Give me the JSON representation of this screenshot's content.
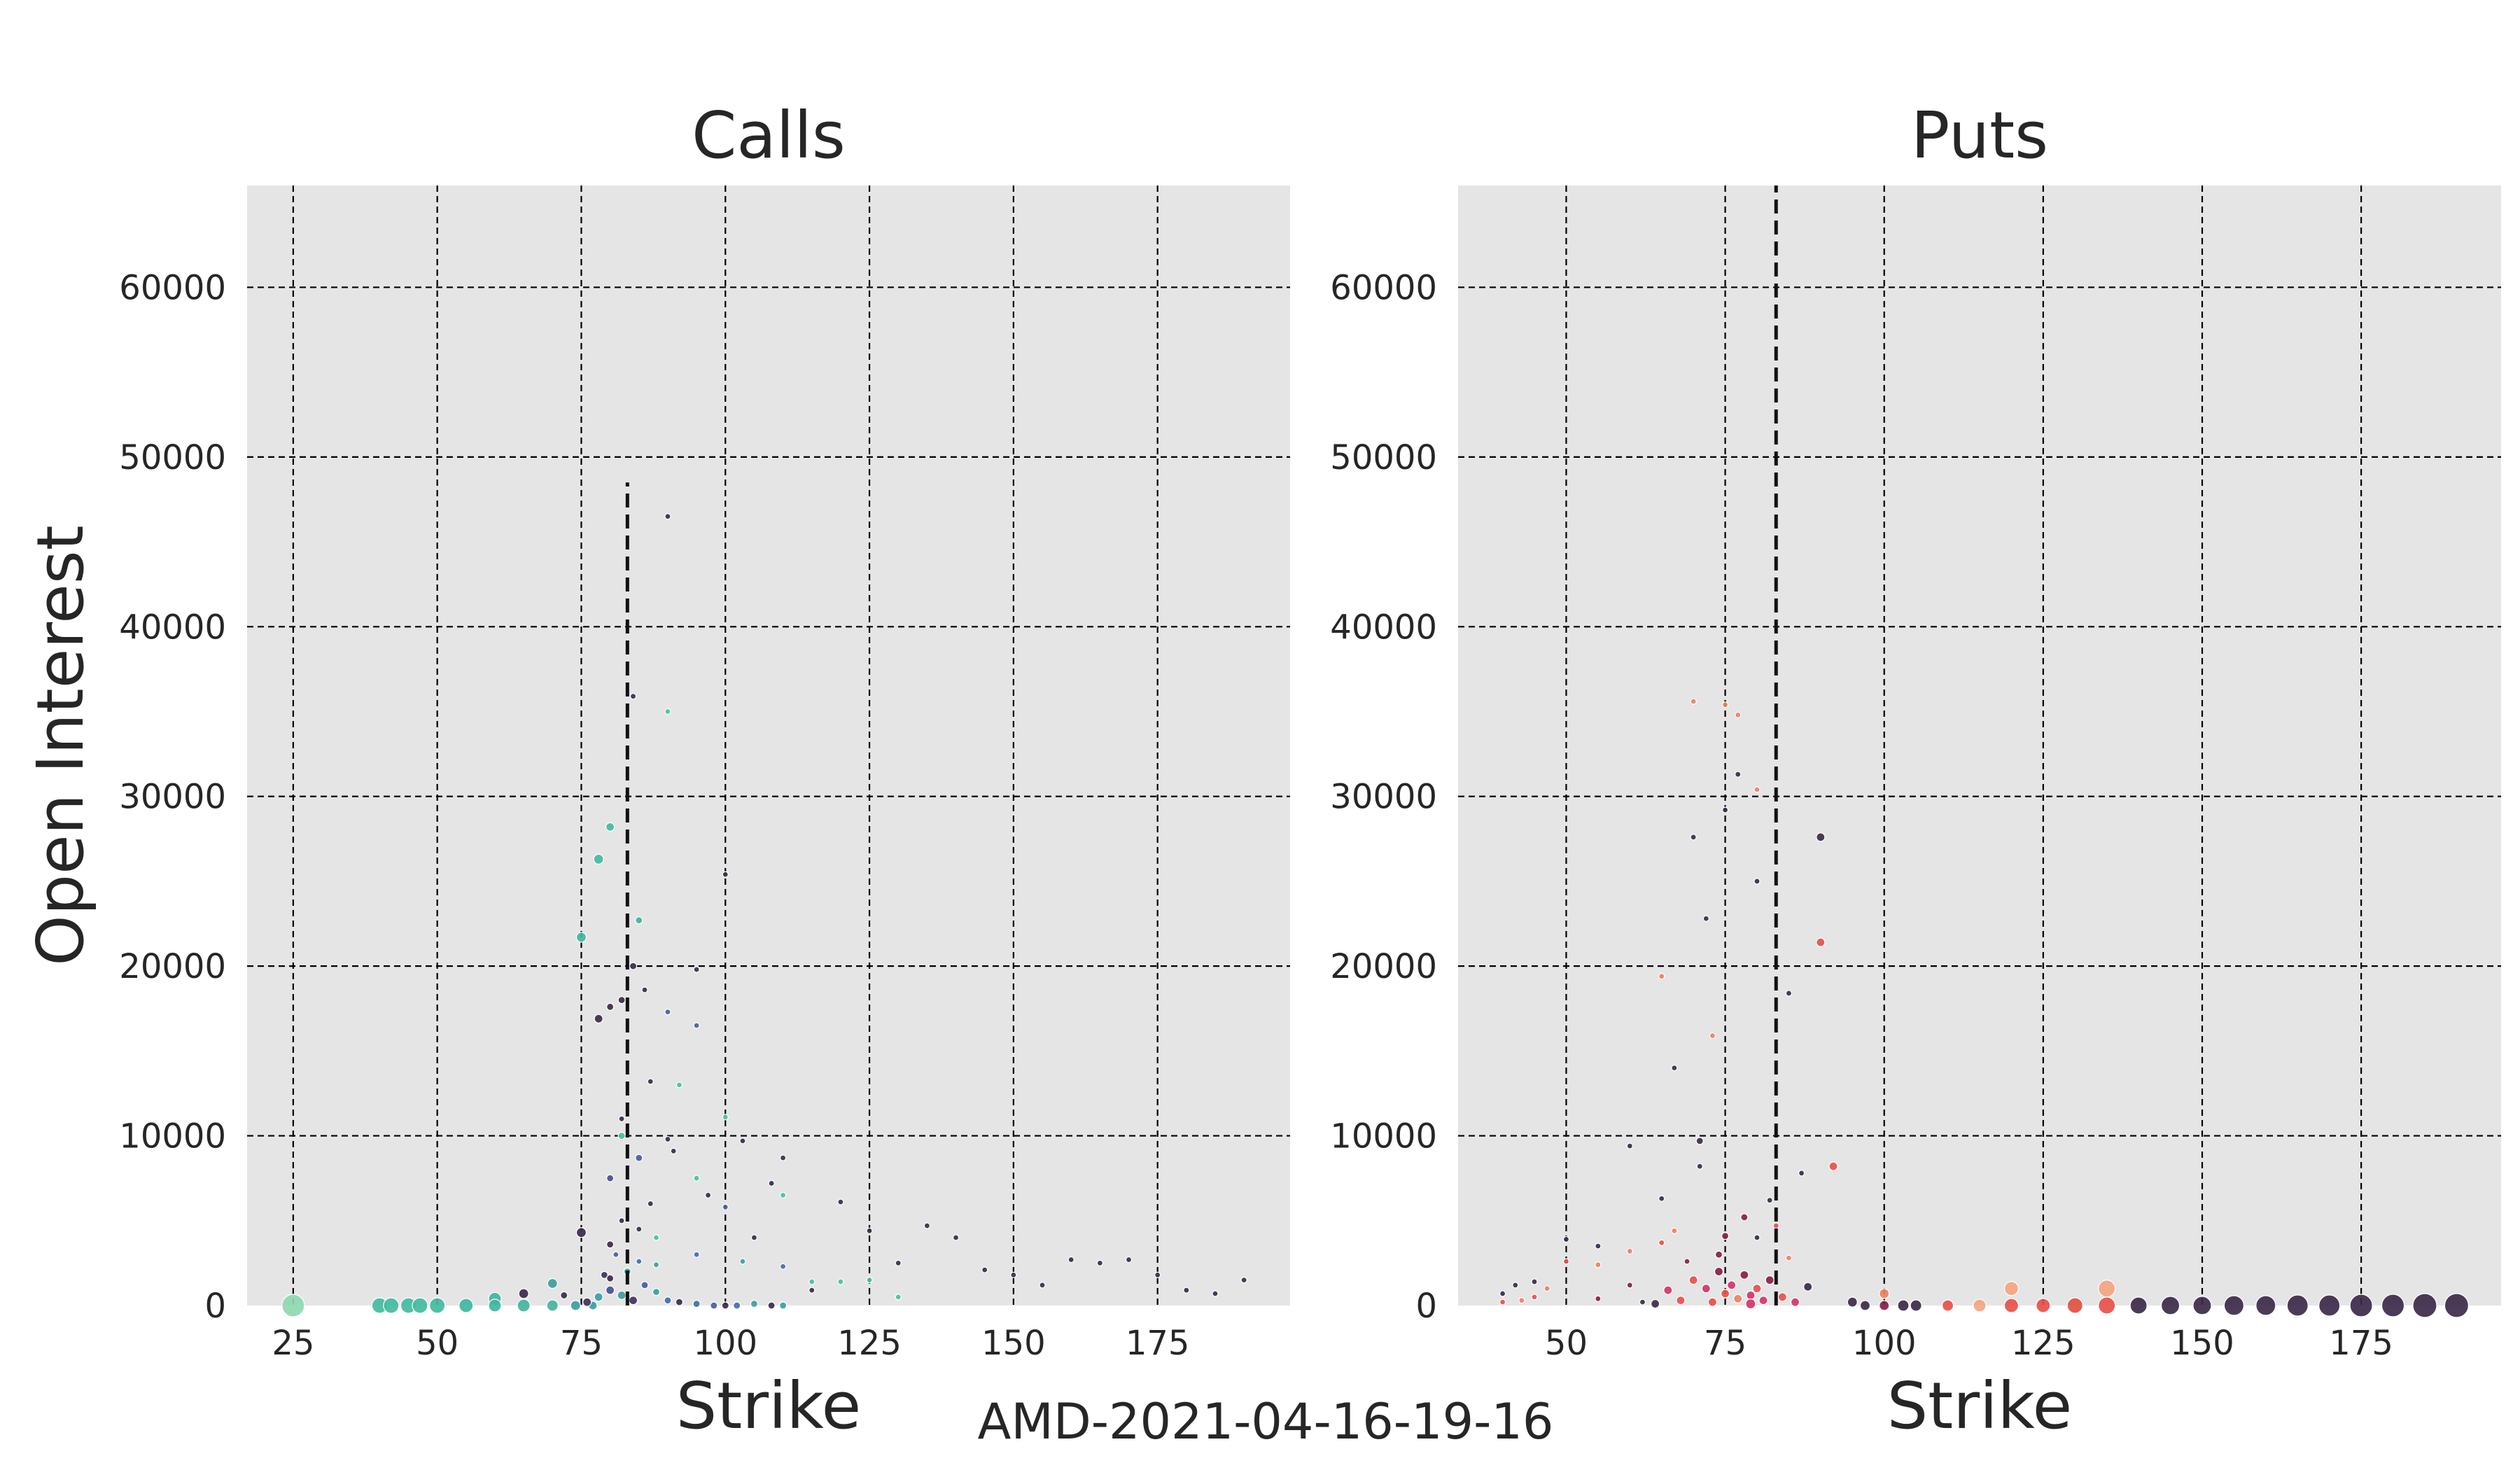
{
  "figure": {
    "suptitle": "AMD-2021-04-16-19-16"
  },
  "chart_data": [
    {
      "type": "scatter",
      "title": "Calls",
      "xlabel": "Strike",
      "ylabel": "Open Interest",
      "xlim": [
        17,
        198
      ],
      "ylim": [
        0,
        66000
      ],
      "xticks": [
        "25",
        "50",
        "75",
        "100",
        "125",
        "150",
        "175"
      ],
      "yticks": [
        "0",
        "10000",
        "20000",
        "30000",
        "40000",
        "50000",
        "60000"
      ],
      "grid": true,
      "legend": "none",
      "reference_line": {
        "x": 83,
        "y_from": 0,
        "y_to": 48500,
        "style": "dashed"
      },
      "points": [
        [
          25,
          0,
          "#8ed9b0",
          16
        ],
        [
          40,
          0,
          "#43bba0",
          11
        ],
        [
          42,
          0,
          "#43bba0",
          11
        ],
        [
          45,
          0,
          "#43bba0",
          11
        ],
        [
          47,
          0,
          "#43bba0",
          11
        ],
        [
          50,
          0,
          "#43bba0",
          11
        ],
        [
          55,
          0,
          "#3fb6a0",
          10
        ],
        [
          60,
          400,
          "#40b5a2",
          9
        ],
        [
          60,
          0,
          "#40b5a2",
          9
        ],
        [
          65,
          700,
          "#3c2a4a",
          7
        ],
        [
          65,
          0,
          "#43b4a0",
          9
        ],
        [
          70,
          1300,
          "#3aa0a2",
          7
        ],
        [
          70,
          0,
          "#43b4a0",
          8
        ],
        [
          72,
          600,
          "#3c2a4a",
          5
        ],
        [
          75,
          4300,
          "#3c2a4a",
          7
        ],
        [
          75,
          21700,
          "#3fb9a1",
          7
        ],
        [
          77,
          0,
          "#3aa0a2",
          6
        ],
        [
          78,
          26300,
          "#45bba3",
          7
        ],
        [
          78,
          16900,
          "#3c2a4a",
          6
        ],
        [
          79,
          1800,
          "#40325e",
          5
        ],
        [
          80,
          28200,
          "#45bba3",
          6
        ],
        [
          80,
          17600,
          "#3c2a4a",
          5
        ],
        [
          80,
          7500,
          "#4a4f8f",
          5
        ],
        [
          80,
          3600,
          "#3c2a4a",
          5
        ],
        [
          80,
          1600,
          "#3c2a4a",
          5
        ],
        [
          81,
          3000,
          "#4a5ea0",
          4
        ],
        [
          82,
          18000,
          "#3c2a4a",
          5
        ],
        [
          82,
          11000,
          "#3c2a4a",
          4
        ],
        [
          82,
          10000,
          "#45c2a4",
          5
        ],
        [
          82,
          5000,
          "#3c2a4a",
          4
        ],
        [
          83,
          2000,
          "#3aa0a2",
          5
        ],
        [
          84,
          20000,
          "#3c2a4a",
          5
        ],
        [
          84,
          35900,
          "#3c2a4a",
          4
        ],
        [
          85,
          22700,
          "#40b3a0",
          5
        ],
        [
          85,
          8700,
          "#4a5ea0",
          5
        ],
        [
          85,
          4500,
          "#3c2a4a",
          4
        ],
        [
          85,
          2600,
          "#3f6fb0",
          4
        ],
        [
          86,
          18600,
          "#3c2a4a",
          4
        ],
        [
          87,
          13200,
          "#3c2a4a",
          4
        ],
        [
          87,
          6000,
          "#3c2a4a",
          4
        ],
        [
          88,
          4000,
          "#45c2a4",
          4
        ],
        [
          88,
          2400,
          "#3aa0a2",
          4
        ],
        [
          90,
          46500,
          "#3c2a4a",
          4
        ],
        [
          90,
          35000,
          "#45c2a4",
          4
        ],
        [
          90,
          17300,
          "#4a5ea0",
          4
        ],
        [
          90,
          9800,
          "#3c2a4a",
          4
        ],
        [
          91,
          9100,
          "#3c2a4a",
          4
        ],
        [
          92,
          13000,
          "#45c2a4",
          4
        ],
        [
          95,
          19800,
          "#3c2a4a",
          4
        ],
        [
          95,
          16500,
          "#4a5ea0",
          4
        ],
        [
          95,
          7500,
          "#45c2a4",
          4
        ],
        [
          95,
          3000,
          "#3f6fb0",
          4
        ],
        [
          97,
          6500,
          "#3c2a4a",
          4
        ],
        [
          100,
          25400,
          "#3c2a4a",
          4
        ],
        [
          100,
          11100,
          "#45c2a4",
          4
        ],
        [
          100,
          5800,
          "#4a5ea0",
          4
        ],
        [
          103,
          9700,
          "#3c2a4a",
          4
        ],
        [
          103,
          2600,
          "#3aa0a2",
          4
        ],
        [
          105,
          4000,
          "#3c2a4a",
          4
        ],
        [
          108,
          7200,
          "#3c2a4a",
          4
        ],
        [
          110,
          8700,
          "#3c2a4a",
          4
        ],
        [
          110,
          6500,
          "#45c2a4",
          4
        ],
        [
          110,
          2300,
          "#3f6fb0",
          4
        ],
        [
          115,
          1400,
          "#45c2a4",
          4
        ],
        [
          115,
          900,
          "#3c2a4a",
          4
        ],
        [
          120,
          6100,
          "#3c2a4a",
          4
        ],
        [
          120,
          1400,
          "#45c2a4",
          4
        ],
        [
          125,
          4400,
          "#3c2a4a",
          4
        ],
        [
          125,
          1500,
          "#45c2a4",
          4
        ],
        [
          130,
          2500,
          "#3c2a4a",
          4
        ],
        [
          130,
          500,
          "#45c2a4",
          4
        ],
        [
          135,
          4700,
          "#3c2a4a",
          4
        ],
        [
          140,
          4000,
          "#3c2a4a",
          4
        ],
        [
          145,
          2100,
          "#3c2a4a",
          4
        ],
        [
          150,
          1800,
          "#3c2a4a",
          4
        ],
        [
          155,
          1200,
          "#3c2a4a",
          4
        ],
        [
          160,
          2700,
          "#3c2a4a",
          4
        ],
        [
          165,
          2500,
          "#3c2a4a",
          4
        ],
        [
          170,
          2700,
          "#3c2a4a",
          4
        ],
        [
          175,
          1800,
          "#3c2a4a",
          4
        ],
        [
          180,
          900,
          "#3c2a4a",
          4
        ],
        [
          185,
          700,
          "#3c2a4a",
          4
        ],
        [
          190,
          1500,
          "#3c2a4a",
          4
        ],
        [
          86,
          1200,
          "#4a5ea0",
          5
        ],
        [
          88,
          800,
          "#3aa0a2",
          5
        ],
        [
          90,
          300,
          "#3f6fb0",
          5
        ],
        [
          92,
          200,
          "#3c2a4a",
          5
        ],
        [
          95,
          100,
          "#3f6fb0",
          5
        ],
        [
          98,
          0,
          "#4a5ea0",
          5
        ],
        [
          100,
          0,
          "#3c2a4a",
          5
        ],
        [
          102,
          0,
          "#3f6fb0",
          5
        ],
        [
          105,
          100,
          "#3aa0a2",
          5
        ],
        [
          108,
          0,
          "#3c2a4a",
          5
        ],
        [
          110,
          0,
          "#3aa0a2",
          5
        ],
        [
          80,
          900,
          "#4a4f8f",
          6
        ],
        [
          82,
          600,
          "#3aa0a2",
          6
        ],
        [
          84,
          300,
          "#40325e",
          6
        ],
        [
          78,
          500,
          "#3aa0a2",
          6
        ],
        [
          76,
          200,
          "#40325e",
          6
        ],
        [
          74,
          0,
          "#3aa0a2",
          7
        ]
      ]
    },
    {
      "type": "scatter",
      "title": "Puts",
      "xlabel": "Strike",
      "ylabel": "",
      "xlim": [
        33,
        197
      ],
      "ylim": [
        0,
        66000
      ],
      "xticks": [
        "50",
        "75",
        "100",
        "125",
        "150",
        "175"
      ],
      "yticks": [
        "0",
        "10000",
        "20000",
        "30000",
        "40000",
        "50000",
        "60000"
      ],
      "grid": true,
      "legend": "none",
      "reference_line": {
        "x": 83,
        "y_from": 0,
        "y_to": 66000,
        "style": "dashed"
      },
      "points": [
        [
          40,
          700,
          "#3c2a4a",
          4
        ],
        [
          40,
          200,
          "#e8504a",
          4
        ],
        [
          42,
          1200,
          "#3c2a4a",
          4
        ],
        [
          43,
          300,
          "#f08060",
          4
        ],
        [
          45,
          1400,
          "#3c2a4a",
          4
        ],
        [
          45,
          500,
          "#e8504a",
          4
        ],
        [
          47,
          1000,
          "#f08060",
          4
        ],
        [
          50,
          3900,
          "#3c2a4a",
          4
        ],
        [
          50,
          2600,
          "#e8504a",
          4
        ],
        [
          55,
          3500,
          "#3c2a4a",
          4
        ],
        [
          55,
          2400,
          "#f08060",
          4
        ],
        [
          55,
          400,
          "#8a1e4a",
          4
        ],
        [
          60,
          9400,
          "#3c2a4a",
          4
        ],
        [
          60,
          3200,
          "#f08060",
          4
        ],
        [
          60,
          1200,
          "#8a1e4a",
          4
        ],
        [
          62,
          200,
          "#3c2a4a",
          4
        ],
        [
          65,
          19400,
          "#f08060",
          4
        ],
        [
          65,
          6300,
          "#3c2a4a",
          4
        ],
        [
          65,
          3700,
          "#e8504a",
          4
        ],
        [
          67,
          14000,
          "#3c2a4a",
          4
        ],
        [
          67,
          4400,
          "#f08060",
          4
        ],
        [
          69,
          2600,
          "#8a1e4a",
          4
        ],
        [
          70,
          35600,
          "#f08060",
          4
        ],
        [
          70,
          27600,
          "#3c2a4a",
          4
        ],
        [
          71,
          8200,
          "#3c2a4a",
          4
        ],
        [
          71,
          9700,
          "#3c2a4a",
          5
        ],
        [
          72,
          22800,
          "#3c2a4a",
          4
        ],
        [
          73,
          15900,
          "#f08060",
          4
        ],
        [
          74,
          3000,
          "#8a1e4a",
          5
        ],
        [
          75,
          35400,
          "#f08060",
          4
        ],
        [
          75,
          29200,
          "#3c2a4a",
          4
        ],
        [
          75,
          4100,
          "#8a1e4a",
          5
        ],
        [
          77,
          34800,
          "#f08060",
          4
        ],
        [
          77,
          31300,
          "#3c2a4a",
          4
        ],
        [
          78,
          5200,
          "#8a1e4a",
          5
        ],
        [
          80,
          30400,
          "#f08060",
          4
        ],
        [
          80,
          25000,
          "#3c2a4a",
          4
        ],
        [
          80,
          4000,
          "#3c2a4a",
          4
        ],
        [
          82,
          6200,
          "#3c2a4a",
          4
        ],
        [
          83,
          4700,
          "#e8504a",
          4
        ],
        [
          85,
          18400,
          "#3c2a4a",
          4
        ],
        [
          85,
          2800,
          "#f08060",
          4
        ],
        [
          87,
          7800,
          "#3c2a4a",
          4
        ],
        [
          88,
          1100,
          "#3c2a4a",
          6
        ],
        [
          90,
          27600,
          "#3c2a4a",
          6
        ],
        [
          90,
          21400,
          "#e8504a",
          6
        ],
        [
          92,
          8200,
          "#e8504a",
          6
        ],
        [
          95,
          200,
          "#3c2a4a",
          7
        ],
        [
          97,
          0,
          "#3c2a4a",
          7
        ],
        [
          100,
          700,
          "#f08060",
          7
        ],
        [
          100,
          0,
          "#8a1e4a",
          7
        ],
        [
          103,
          0,
          "#3c2a4a",
          8
        ],
        [
          105,
          0,
          "#3c2a4a",
          8
        ],
        [
          110,
          0,
          "#e8504a",
          8
        ],
        [
          115,
          0,
          "#f4a582",
          9
        ],
        [
          120,
          1000,
          "#f4a582",
          10
        ],
        [
          120,
          0,
          "#e8504a",
          10
        ],
        [
          125,
          0,
          "#e8504a",
          10
        ],
        [
          130,
          0,
          "#e05040",
          11
        ],
        [
          135,
          1000,
          "#f4a582",
          12
        ],
        [
          135,
          0,
          "#e8504a",
          12
        ],
        [
          140,
          0,
          "#3c2a4a",
          12
        ],
        [
          145,
          0,
          "#3c2a4a",
          13
        ],
        [
          150,
          0,
          "#3c2a4a",
          13
        ],
        [
          155,
          0,
          "#3c2a4a",
          14
        ],
        [
          160,
          0,
          "#3c2a4a",
          14
        ],
        [
          165,
          0,
          "#3c2a4a",
          15
        ],
        [
          170,
          0,
          "#3c2a4a",
          15
        ],
        [
          175,
          0,
          "#3c2a4a",
          16
        ],
        [
          180,
          0,
          "#3c2a4a",
          16
        ],
        [
          185,
          0,
          "#3c2a4a",
          17
        ],
        [
          190,
          0,
          "#3c2a4a",
          17
        ],
        [
          70,
          1500,
          "#e8504a",
          6
        ],
        [
          72,
          1000,
          "#d6336c",
          6
        ],
        [
          74,
          2000,
          "#8a1e4a",
          6
        ],
        [
          75,
          700,
          "#e8504a",
          6
        ],
        [
          76,
          1200,
          "#d6336c",
          6
        ],
        [
          77,
          400,
          "#f08060",
          6
        ],
        [
          78,
          1800,
          "#8a1e4a",
          6
        ],
        [
          79,
          600,
          "#d6336c",
          6
        ],
        [
          80,
          1000,
          "#e8504a",
          6
        ],
        [
          81,
          300,
          "#d6336c",
          6
        ],
        [
          82,
          1500,
          "#8a1e4a",
          6
        ],
        [
          84,
          500,
          "#e8504a",
          6
        ],
        [
          86,
          200,
          "#d6336c",
          6
        ],
        [
          68,
          300,
          "#e8504a",
          6
        ],
        [
          66,
          900,
          "#d6336c",
          6
        ],
        [
          64,
          100,
          "#3c2a4a",
          6
        ],
        [
          73,
          200,
          "#e8504a",
          6
        ],
        [
          79,
          100,
          "#d6336c",
          7
        ]
      ]
    }
  ]
}
